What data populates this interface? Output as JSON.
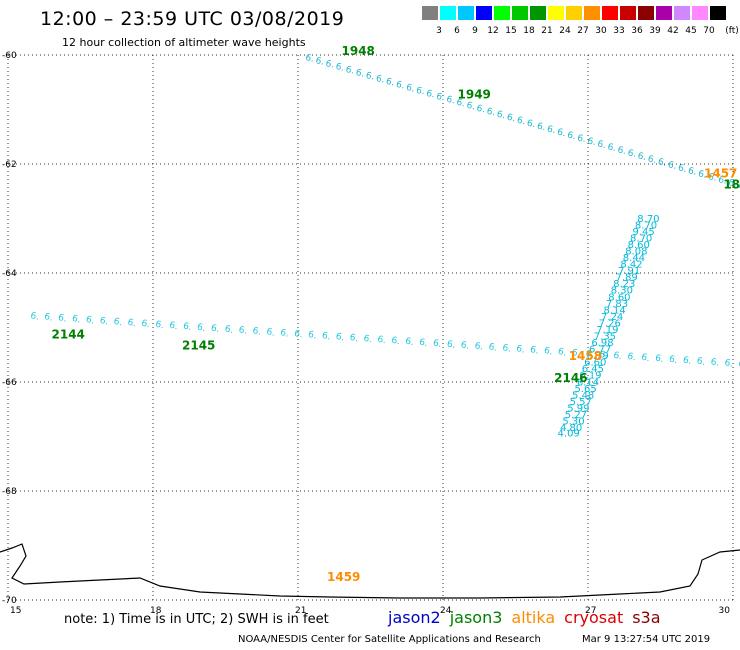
{
  "title": "12:00 – 23:59 UTC 03/08/2019",
  "subtitle": "12 hour collection of altimeter wave heights",
  "legend": {
    "units": "(ft)",
    "bins": [
      {
        "label": "3",
        "color": "#808080"
      },
      {
        "label": "6",
        "color": "#00ffff"
      },
      {
        "label": "9",
        "color": "#00c8ff"
      },
      {
        "label": "12",
        "color": "#0000ff"
      },
      {
        "label": "15",
        "color": "#00ff00"
      },
      {
        "label": "18",
        "color": "#00c800"
      },
      {
        "label": "21",
        "color": "#009600"
      },
      {
        "label": "24",
        "color": "#ffff00"
      },
      {
        "label": "27",
        "color": "#ffd000"
      },
      {
        "label": "30",
        "color": "#ff9000"
      },
      {
        "label": "33",
        "color": "#ff0000"
      },
      {
        "label": "36",
        "color": "#c80000"
      },
      {
        "label": "39",
        "color": "#8b0000"
      },
      {
        "label": "42",
        "color": "#aa00aa"
      },
      {
        "label": "45",
        "color": "#d088ff"
      },
      {
        "label": "70",
        "color": "#ff88ff"
      },
      {
        "label": "",
        "color": "#000000"
      }
    ]
  },
  "map": {
    "lon_range": [
      15,
      30
    ],
    "lat_range": [
      -70,
      -60
    ],
    "lon_ticks": [
      "15",
      "18",
      "21",
      "24",
      "27",
      "30"
    ],
    "lat_ticks": [
      "-60",
      "-62",
      "-64",
      "-66",
      "-68",
      "-70"
    ],
    "pass_labels": [
      {
        "text": "1948",
        "lon": 21.9,
        "lat": -60.0,
        "color": "#008000"
      },
      {
        "text": "1949",
        "lon": 24.3,
        "lat": -60.8,
        "color": "#008000"
      },
      {
        "text": "1457",
        "lon": 29.4,
        "lat": -62.25,
        "color": "#ff8c00"
      },
      {
        "text": "18",
        "lon": 29.8,
        "lat": -62.45,
        "color": "#008000"
      },
      {
        "text": "2144",
        "lon": 15.9,
        "lat": -65.2,
        "color": "#008000"
      },
      {
        "text": "2145",
        "lon": 18.6,
        "lat": -65.4,
        "color": "#008000"
      },
      {
        "text": "1458",
        "lon": 26.6,
        "lat": -65.6,
        "color": "#ff8c00"
      },
      {
        "text": "2146",
        "lon": 26.3,
        "lat": -66.0,
        "color": "#008000"
      },
      {
        "text": "1459",
        "lon": 21.6,
        "lat": -69.65,
        "color": "#ff8c00"
      }
    ],
    "jason3_ascending": [
      {
        "lon": 26.6,
        "lat": -67.0,
        "swh": "4.09"
      },
      {
        "lon": 26.65,
        "lat": -66.9,
        "swh": "4.80"
      },
      {
        "lon": 26.7,
        "lat": -66.78,
        "swh": "5.30"
      },
      {
        "lon": 26.75,
        "lat": -66.66,
        "swh": "5.27"
      },
      {
        "lon": 26.8,
        "lat": -66.54,
        "swh": "5.99"
      },
      {
        "lon": 26.85,
        "lat": -66.42,
        "swh": "5.57"
      },
      {
        "lon": 26.9,
        "lat": -66.3,
        "swh": "5.48"
      },
      {
        "lon": 26.95,
        "lat": -66.18,
        "swh": "5.65"
      },
      {
        "lon": 27.0,
        "lat": -66.06,
        "swh": "6.14"
      },
      {
        "lon": 27.05,
        "lat": -65.94,
        "swh": "6.19"
      },
      {
        "lon": 27.1,
        "lat": -65.82,
        "swh": "6.45"
      },
      {
        "lon": 27.15,
        "lat": -65.7,
        "swh": "6.60"
      },
      {
        "lon": 27.2,
        "lat": -65.58,
        "swh": "6.79"
      },
      {
        "lon": 27.25,
        "lat": -65.46,
        "swh": "6.77"
      },
      {
        "lon": 27.3,
        "lat": -65.34,
        "swh": "6.98"
      },
      {
        "lon": 27.35,
        "lat": -65.22,
        "swh": "7.35"
      },
      {
        "lon": 27.4,
        "lat": -65.1,
        "swh": "7.19"
      },
      {
        "lon": 27.45,
        "lat": -64.98,
        "swh": "7.26"
      },
      {
        "lon": 27.5,
        "lat": -64.86,
        "swh": "7.24"
      },
      {
        "lon": 27.55,
        "lat": -64.74,
        "swh": "8.14"
      },
      {
        "lon": 27.6,
        "lat": -64.62,
        "swh": "7.83"
      },
      {
        "lon": 27.65,
        "lat": -64.5,
        "swh": "8.60"
      },
      {
        "lon": 27.7,
        "lat": -64.38,
        "swh": "8.30"
      },
      {
        "lon": 27.75,
        "lat": -64.26,
        "swh": "8.23"
      },
      {
        "lon": 27.8,
        "lat": -64.14,
        "swh": "7.89"
      },
      {
        "lon": 27.85,
        "lat": -64.02,
        "swh": "7.91"
      },
      {
        "lon": 27.9,
        "lat": -63.9,
        "swh": "8.42"
      },
      {
        "lon": 27.95,
        "lat": -63.78,
        "swh": "8.44"
      },
      {
        "lon": 28.0,
        "lat": -63.66,
        "swh": "8.08"
      },
      {
        "lon": 28.05,
        "lat": -63.54,
        "swh": "8.60"
      },
      {
        "lon": 28.1,
        "lat": -63.42,
        "swh": "8.70"
      },
      {
        "lon": 28.15,
        "lat": -63.3,
        "swh": "9.45"
      },
      {
        "lon": 28.2,
        "lat": -63.18,
        "swh": "8.70"
      },
      {
        "lon": 28.25,
        "lat": -63.06,
        "swh": "8.70"
      }
    ]
  },
  "note": "note:  1) Time is in UTC;  2) SWH is in feet",
  "satellites": [
    {
      "name": "jason2",
      "color": "#0000cc"
    },
    {
      "name": "jason3",
      "color": "#008000"
    },
    {
      "name": "altika",
      "color": "#ff8c00"
    },
    {
      "name": "cryosat",
      "color": "#dd0000"
    },
    {
      "name": "s3a",
      "color": "#8b0000"
    }
  ],
  "credit": "NOAA/NESDIS Center for Satellite Applications and Research",
  "credit_time": "Mar  9 13:27:54 UTC 2019"
}
